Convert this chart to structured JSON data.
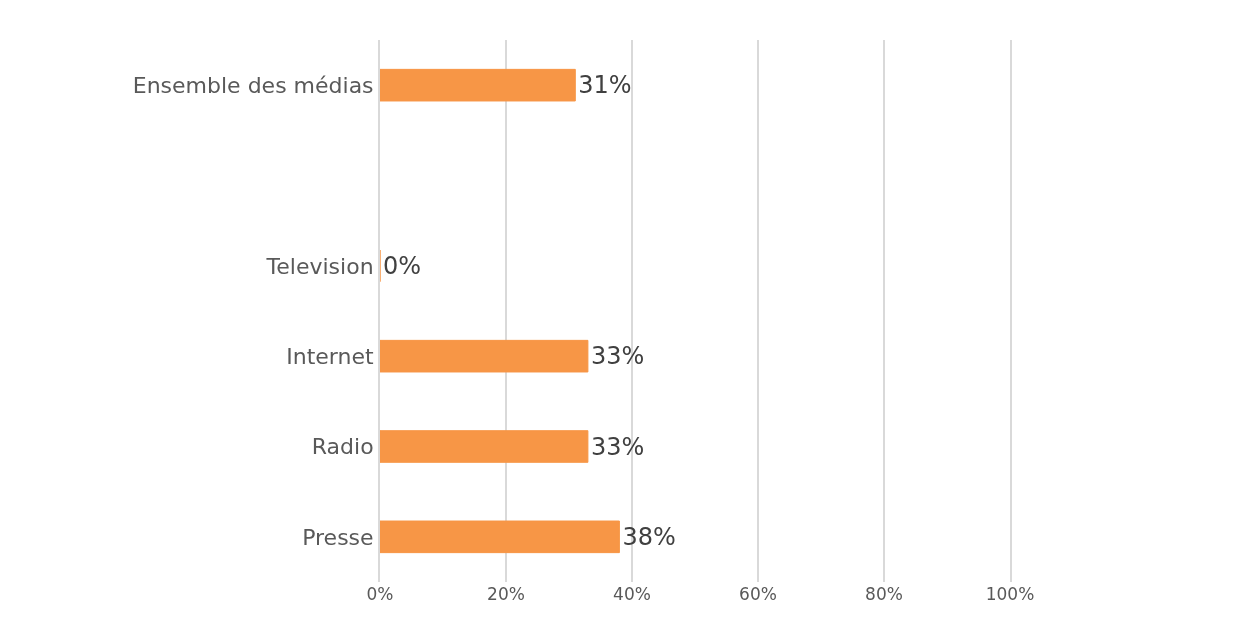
{
  "chart_data": {
    "type": "bar",
    "orientation": "horizontal",
    "categories": [
      "Ensemble des médias",
      null,
      "Television",
      "Internet",
      "Radio",
      "Presse"
    ],
    "values": [
      31,
      null,
      0,
      33,
      33,
      38
    ],
    "value_labels": [
      "31%",
      null,
      "0%",
      "33%",
      "33%",
      "38%"
    ],
    "color": "#f79646",
    "xlim": [
      0,
      100
    ],
    "xticks": [
      {
        "value": 0,
        "label": "0%"
      },
      {
        "value": 20,
        "label": "20%"
      },
      {
        "value": 40,
        "label": "40%"
      },
      {
        "value": 60,
        "label": "60%"
      },
      {
        "value": 80,
        "label": "80%"
      },
      {
        "value": 100,
        "label": "100%"
      }
    ],
    "grid": "x"
  }
}
